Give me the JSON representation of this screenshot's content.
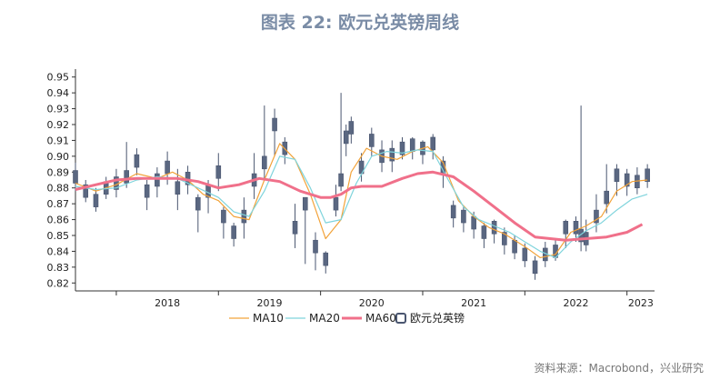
{
  "title": "图表 22: 欧元兑英镑周线",
  "source": "资料来源：Macrobond，兴业研究",
  "chart_data": {
    "type": "line",
    "title": "图表 22: 欧元兑英镑周线",
    "ylim": [
      0.815,
      0.955
    ],
    "y_ticks": [
      "0.82",
      "0.83",
      "0.84",
      "0.85",
      "0.86",
      "0.87",
      "0.88",
      "0.89",
      "0.90",
      "0.91",
      "0.92",
      "0.93",
      "0.94",
      "0.95"
    ],
    "x_range": [
      2017.6,
      2023.27
    ],
    "x_ticks": [
      "2018",
      "2019",
      "2020",
      "2021",
      "2022",
      "2023"
    ],
    "legend": [
      "MA10",
      "MA20",
      "MA60",
      "欧元兑英镑"
    ],
    "legend_position": "bottom",
    "series": [
      {
        "name": "欧元兑英镑",
        "color": "#4a5670",
        "render": "candlestick-wicks",
        "x": [
          2017.6,
          2017.7,
          2017.8,
          2017.9,
          2018.0,
          2018.1,
          2018.2,
          2018.3,
          2018.4,
          2018.5,
          2018.6,
          2018.7,
          2018.8,
          2018.9,
          2019.0,
          2019.05,
          2019.15,
          2019.25,
          2019.35,
          2019.45,
          2019.55,
          2019.65,
          2019.75,
          2019.85,
          2019.95,
          2020.05,
          2020.15,
          2020.2,
          2020.25,
          2020.3,
          2020.4,
          2020.5,
          2020.6,
          2020.7,
          2020.8,
          2020.9,
          2021.0,
          2021.1,
          2021.2,
          2021.3,
          2021.4,
          2021.5,
          2021.6,
          2021.7,
          2021.8,
          2021.9,
          2022.0,
          2022.1,
          2022.2,
          2022.3,
          2022.4,
          2022.5,
          2022.55,
          2022.6,
          2022.7,
          2022.8,
          2022.9,
          2023.0,
          2023.1,
          2023.2
        ],
        "values": [
          0.887,
          0.878,
          0.872,
          0.88,
          0.883,
          0.887,
          0.897,
          0.878,
          0.885,
          0.893,
          0.88,
          0.886,
          0.87,
          0.878,
          0.89,
          0.862,
          0.852,
          0.862,
          0.885,
          0.896,
          0.92,
          0.905,
          0.855,
          0.87,
          0.843,
          0.835,
          0.87,
          0.885,
          0.912,
          0.918,
          0.893,
          0.91,
          0.9,
          0.901,
          0.905,
          0.907,
          0.905,
          0.908,
          0.893,
          0.865,
          0.862,
          0.858,
          0.852,
          0.855,
          0.848,
          0.843,
          0.838,
          0.83,
          0.838,
          0.84,
          0.855,
          0.855,
          0.85,
          0.848,
          0.862,
          0.874,
          0.888,
          0.885,
          0.884,
          0.888
        ],
        "highs": [
          0.896,
          0.885,
          0.88,
          0.887,
          0.892,
          0.909,
          0.905,
          0.885,
          0.893,
          0.903,
          0.892,
          0.894,
          0.876,
          0.885,
          0.902,
          0.868,
          0.858,
          0.874,
          0.902,
          0.932,
          0.93,
          0.912,
          0.87,
          0.874,
          0.852,
          0.84,
          0.882,
          0.94,
          0.92,
          0.925,
          0.902,
          0.918,
          0.91,
          0.91,
          0.912,
          0.912,
          0.91,
          0.914,
          0.9,
          0.872,
          0.868,
          0.865,
          0.858,
          0.86,
          0.855,
          0.85,
          0.845,
          0.837,
          0.846,
          0.848,
          0.86,
          0.862,
          0.932,
          0.86,
          0.876,
          0.895,
          0.895,
          0.892,
          0.893,
          0.895
        ],
        "lows": [
          0.878,
          0.871,
          0.865,
          0.873,
          0.874,
          0.88,
          0.888,
          0.866,
          0.874,
          0.882,
          0.866,
          0.876,
          0.852,
          0.864,
          0.878,
          0.848,
          0.843,
          0.848,
          0.873,
          0.885,
          0.9,
          0.895,
          0.842,
          0.832,
          0.828,
          0.826,
          0.862,
          0.878,
          0.9,
          0.908,
          0.884,
          0.9,
          0.89,
          0.89,
          0.898,
          0.898,
          0.895,
          0.898,
          0.88,
          0.855,
          0.852,
          0.848,
          0.842,
          0.845,
          0.838,
          0.835,
          0.83,
          0.822,
          0.83,
          0.834,
          0.842,
          0.846,
          0.84,
          0.84,
          0.852,
          0.864,
          0.875,
          0.875,
          0.876,
          0.88
        ]
      },
      {
        "name": "MA10",
        "color": "#f2a33a",
        "x": [
          2017.6,
          2017.8,
          2018.0,
          2018.2,
          2018.4,
          2018.55,
          2018.7,
          2018.85,
          2019.0,
          2019.15,
          2019.3,
          2019.45,
          2019.6,
          2019.75,
          2019.9,
          2020.05,
          2020.2,
          2020.3,
          2020.45,
          2020.6,
          2020.75,
          2020.9,
          2021.05,
          2021.2,
          2021.35,
          2021.5,
          2021.65,
          2021.8,
          2022.0,
          2022.15,
          2022.3,
          2022.45,
          2022.6,
          2022.75,
          2022.9,
          2023.05,
          2023.2
        ],
        "values": [
          0.883,
          0.878,
          0.882,
          0.889,
          0.886,
          0.89,
          0.885,
          0.876,
          0.872,
          0.862,
          0.86,
          0.885,
          0.908,
          0.898,
          0.876,
          0.848,
          0.86,
          0.89,
          0.905,
          0.9,
          0.898,
          0.903,
          0.906,
          0.896,
          0.872,
          0.862,
          0.855,
          0.851,
          0.843,
          0.836,
          0.838,
          0.852,
          0.856,
          0.862,
          0.878,
          0.884,
          0.885
        ]
      },
      {
        "name": "MA20",
        "color": "#7fd4dc",
        "x": [
          2017.6,
          2017.8,
          2018.0,
          2018.2,
          2018.4,
          2018.6,
          2018.8,
          2019.0,
          2019.15,
          2019.3,
          2019.45,
          2019.6,
          2019.75,
          2019.9,
          2020.05,
          2020.2,
          2020.35,
          2020.5,
          2020.65,
          2020.8,
          2020.95,
          2021.1,
          2021.25,
          2021.4,
          2021.55,
          2021.7,
          2021.85,
          2022.0,
          2022.15,
          2022.3,
          2022.45,
          2022.6,
          2022.75,
          2022.9,
          2023.05,
          2023.2
        ],
        "values": [
          0.881,
          0.879,
          0.88,
          0.885,
          0.887,
          0.886,
          0.88,
          0.874,
          0.865,
          0.862,
          0.878,
          0.9,
          0.898,
          0.88,
          0.858,
          0.86,
          0.883,
          0.9,
          0.903,
          0.902,
          0.904,
          0.903,
          0.885,
          0.868,
          0.86,
          0.856,
          0.852,
          0.846,
          0.84,
          0.836,
          0.846,
          0.853,
          0.858,
          0.866,
          0.873,
          0.876
        ]
      },
      {
        "name": "MA60",
        "color": "#f0708a",
        "x": [
          2017.6,
          2017.8,
          2018.0,
          2018.2,
          2018.4,
          2018.6,
          2018.8,
          2019.0,
          2019.2,
          2019.4,
          2019.6,
          2019.8,
          2020.0,
          2020.1,
          2020.2,
          2020.3,
          2020.4,
          2020.6,
          2020.8,
          2020.95,
          2021.1,
          2021.3,
          2021.5,
          2021.7,
          2021.9,
          2022.1,
          2022.25,
          2022.4,
          2022.6,
          2022.8,
          2023.0,
          2023.15
        ],
        "values": [
          0.879,
          0.882,
          0.885,
          0.886,
          0.886,
          0.886,
          0.884,
          0.88,
          0.882,
          0.886,
          0.884,
          0.878,
          0.874,
          0.874,
          0.876,
          0.88,
          0.881,
          0.881,
          0.886,
          0.889,
          0.89,
          0.887,
          0.878,
          0.868,
          0.858,
          0.849,
          0.848,
          0.847,
          0.848,
          0.849,
          0.852,
          0.857
        ]
      }
    ]
  }
}
